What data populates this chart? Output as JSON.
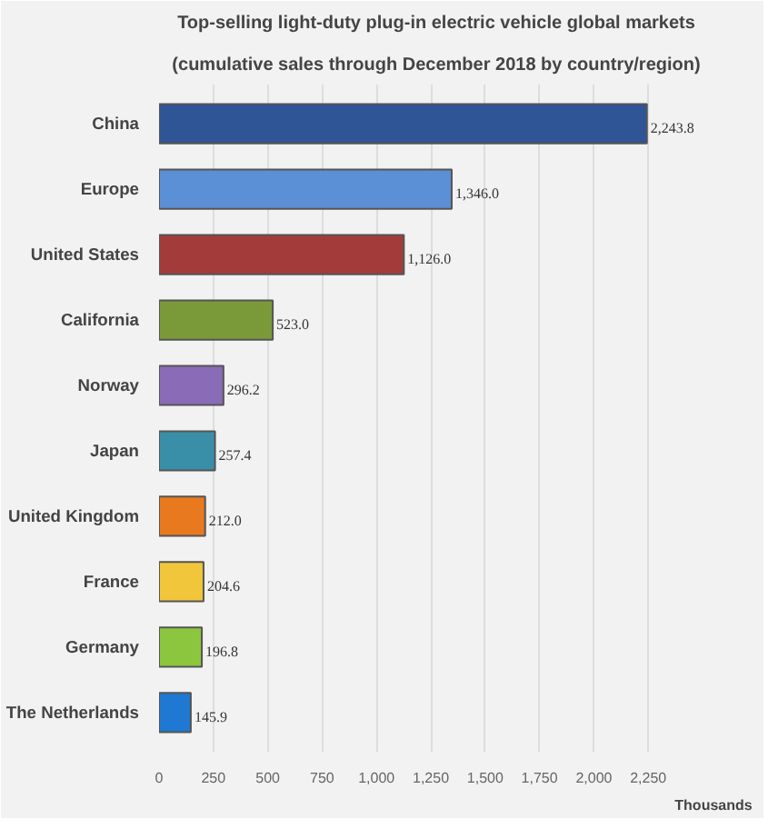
{
  "chart_data": {
    "type": "bar",
    "orientation": "horizontal",
    "title": "Top-selling light-duty plug-in electric vehicle global markets",
    "subtitle": "(cumulative sales through December 2018 by country/region)",
    "xlabel": "Thousands",
    "categories": [
      "China",
      "Europe",
      "United States",
      "California",
      "Norway",
      "Japan",
      "United Kingdom",
      "France",
      "Germany",
      "The Netherlands"
    ],
    "values": [
      2243.8,
      1346.0,
      1126.0,
      523.0,
      296.2,
      257.4,
      212.0,
      204.6,
      196.8,
      145.9
    ],
    "value_labels": [
      "2,243.8",
      "1,346.0",
      "1,126.0",
      "523.0",
      "296.2",
      "257.4",
      "212.0",
      "204.6",
      "196.8",
      "145.9"
    ],
    "colors": [
      "#2f5597",
      "#5b8fd6",
      "#a33b3b",
      "#7a9a3a",
      "#8a6bb8",
      "#3a8fa8",
      "#e8791e",
      "#f2c63a",
      "#8cc63e",
      "#1f78d1"
    ],
    "xlim": [
      0,
      2550
    ],
    "xticks": [
      0,
      {
        "value": 250,
        "label": "250"
      },
      {
        "value": 500,
        "label": "500"
      },
      {
        "value": 750,
        "label": "750"
      },
      {
        "value": 1000,
        "label": "1,000"
      },
      {
        "value": 1250,
        "label": "1,250"
      },
      {
        "value": 1500,
        "label": "1,500"
      },
      {
        "value": 1750,
        "label": "1,750"
      },
      {
        "value": 2000,
        "label": "2,000"
      },
      {
        "value": 2250,
        "label": "2,250"
      }
    ],
    "grid": "x"
  }
}
